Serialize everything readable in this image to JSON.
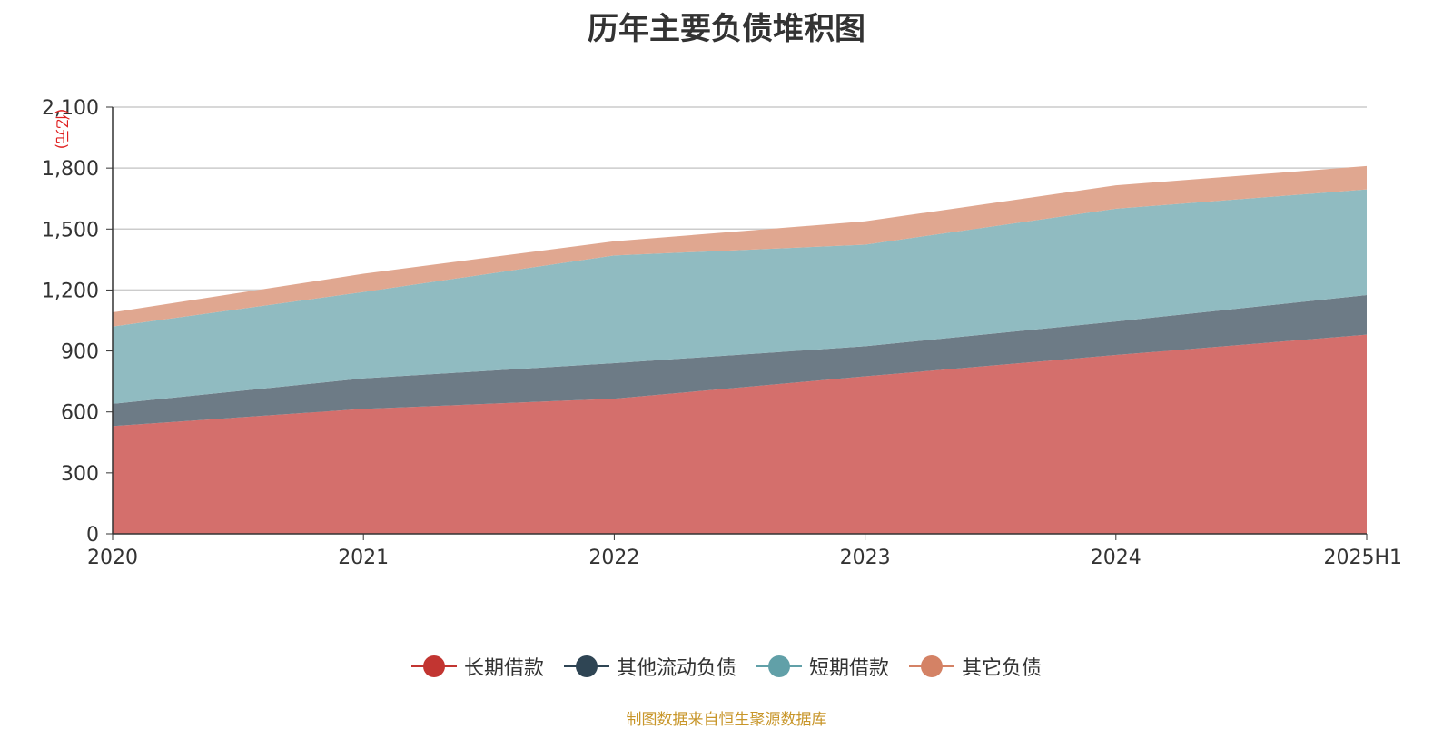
{
  "chart_data": {
    "type": "area",
    "stacked": true,
    "title": "历年主要负债堆积图",
    "unit_label": "(亿元)",
    "categories": [
      "2020",
      "2021",
      "2022",
      "2023",
      "2024",
      "2025H1"
    ],
    "ylim": [
      0,
      2100
    ],
    "yticks": [
      "0",
      "300",
      "600",
      "900",
      "1,200",
      "1,500",
      "1,800",
      "2,100"
    ],
    "ytick_values": [
      0,
      300,
      600,
      900,
      1200,
      1500,
      1800,
      2100
    ],
    "grid": true,
    "legend_position": "bottom",
    "series": [
      {
        "name": "长期借款",
        "color": "#c23531",
        "fill": "#d46f6c",
        "values": [
          530,
          615,
          665,
          775,
          880,
          980
        ]
      },
      {
        "name": "其他流动负债",
        "color": "#2f4554",
        "fill": "#6d7b86",
        "values": [
          110,
          150,
          175,
          148,
          165,
          195
        ]
      },
      {
        "name": "短期借款",
        "color": "#61a0a8",
        "fill": "#90bbc1",
        "values": [
          380,
          425,
          530,
          500,
          555,
          520
        ]
      },
      {
        "name": "其它负债",
        "color": "#d48265",
        "fill": "#e0a790",
        "values": [
          70,
          90,
          70,
          115,
          115,
          115
        ]
      }
    ]
  },
  "source_note": "制图数据来自恒生聚源数据库"
}
